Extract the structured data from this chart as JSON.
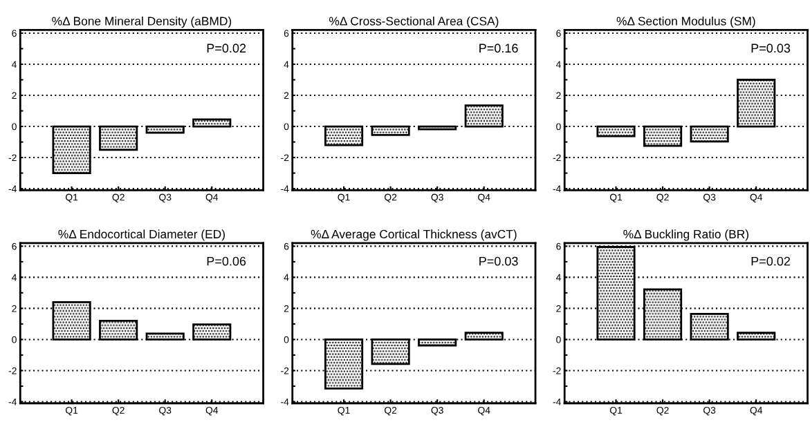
{
  "chart_data": [
    {
      "type": "bar",
      "title": "%Δ Bone Mineral Density (aBMD)",
      "categories": [
        "Q1",
        "Q2",
        "Q3",
        "Q4"
      ],
      "values": [
        -3.0,
        -1.5,
        -0.4,
        0.45
      ],
      "color": "#000000",
      "ylim": [
        -4.1,
        6.2
      ],
      "yticks": [
        -4,
        {
          "value": -3,
          "label": null
        },
        -2,
        {
          "value": -1,
          "label": null
        },
        0,
        {
          "value": 1,
          "label": null
        },
        2,
        {
          "value": 3,
          "label": null
        },
        4,
        {
          "value": 5,
          "label": null
        },
        6
      ],
      "grid": "y",
      "annotations": [
        "P=0.02"
      ]
    },
    {
      "type": "bar",
      "title": "%Δ Cross-Sectional Area (CSA)",
      "categories": [
        "Q1",
        "Q2",
        "Q3",
        "Q4"
      ],
      "values": [
        -1.2,
        -0.55,
        -0.18,
        1.35
      ],
      "color": "#000000",
      "ylim": [
        -4.1,
        6.2
      ],
      "yticks": [
        -4,
        {
          "value": -3,
          "label": null
        },
        -2,
        {
          "value": -1,
          "label": null
        },
        0,
        {
          "value": 1,
          "label": null
        },
        2,
        {
          "value": 3,
          "label": null
        },
        4,
        {
          "value": 5,
          "label": null
        },
        6
      ],
      "grid": "y",
      "annotations": [
        "P=0.16"
      ]
    },
    {
      "type": "bar",
      "title": "%Δ Section Modulus (SM)",
      "categories": [
        "Q1",
        "Q2",
        "Q3",
        "Q4"
      ],
      "values": [
        -0.63,
        -1.25,
        -0.97,
        3.0
      ],
      "color": "#000000",
      "ylim": [
        -4.1,
        6.2
      ],
      "yticks": [
        -4,
        {
          "value": -3,
          "label": null
        },
        -2,
        {
          "value": -1,
          "label": null
        },
        0,
        {
          "value": 1,
          "label": null
        },
        2,
        {
          "value": 3,
          "label": null
        },
        4,
        {
          "value": 5,
          "label": null
        },
        6
      ],
      "grid": "y",
      "annotations": [
        "P=0.03"
      ]
    },
    {
      "type": "bar",
      "title": "%Δ Endocortical Diameter (ED)",
      "categories": [
        "Q1",
        "Q2",
        "Q3",
        "Q4"
      ],
      "values": [
        2.4,
        1.2,
        0.38,
        0.97
      ],
      "color": "#000000",
      "ylim": [
        -4.1,
        6.2
      ],
      "yticks": [
        -4,
        {
          "value": -3,
          "label": null
        },
        -2,
        {
          "value": -1,
          "label": null
        },
        0,
        {
          "value": 1,
          "label": null
        },
        2,
        {
          "value": 3,
          "label": null
        },
        4,
        {
          "value": 5,
          "label": null
        },
        6
      ],
      "grid": "y",
      "annotations": [
        "P=0.06"
      ]
    },
    {
      "type": "bar",
      "title": "%Δ Average Cortical Thickness (avCT)",
      "categories": [
        "Q1",
        "Q2",
        "Q3",
        "Q4"
      ],
      "values": [
        -3.15,
        -1.57,
        -0.38,
        0.44
      ],
      "color": "#000000",
      "ylim": [
        -4.1,
        6.2
      ],
      "yticks": [
        -4,
        {
          "value": -3,
          "label": null
        },
        -2,
        {
          "value": -1,
          "label": null
        },
        0,
        {
          "value": 1,
          "label": null
        },
        2,
        {
          "value": 3,
          "label": null
        },
        4,
        {
          "value": 5,
          "label": null
        },
        6
      ],
      "grid": "y",
      "annotations": [
        "P=0.03"
      ]
    },
    {
      "type": "bar",
      "title": "%Δ Buckling Ratio (BR)",
      "categories": [
        "Q1",
        "Q2",
        "Q3",
        "Q4"
      ],
      "values": [
        5.95,
        3.22,
        1.65,
        0.43
      ],
      "color": "#000000",
      "ylim": [
        -4.1,
        6.2
      ],
      "yticks": [
        -4,
        {
          "value": -3,
          "label": null
        },
        -2,
        {
          "value": -1,
          "label": null
        },
        0,
        {
          "value": 1,
          "label": null
        },
        2,
        {
          "value": 3,
          "label": null
        },
        4,
        {
          "value": 5,
          "label": null
        },
        6
      ],
      "grid": "y",
      "annotations": [
        "P=0.02"
      ]
    }
  ]
}
